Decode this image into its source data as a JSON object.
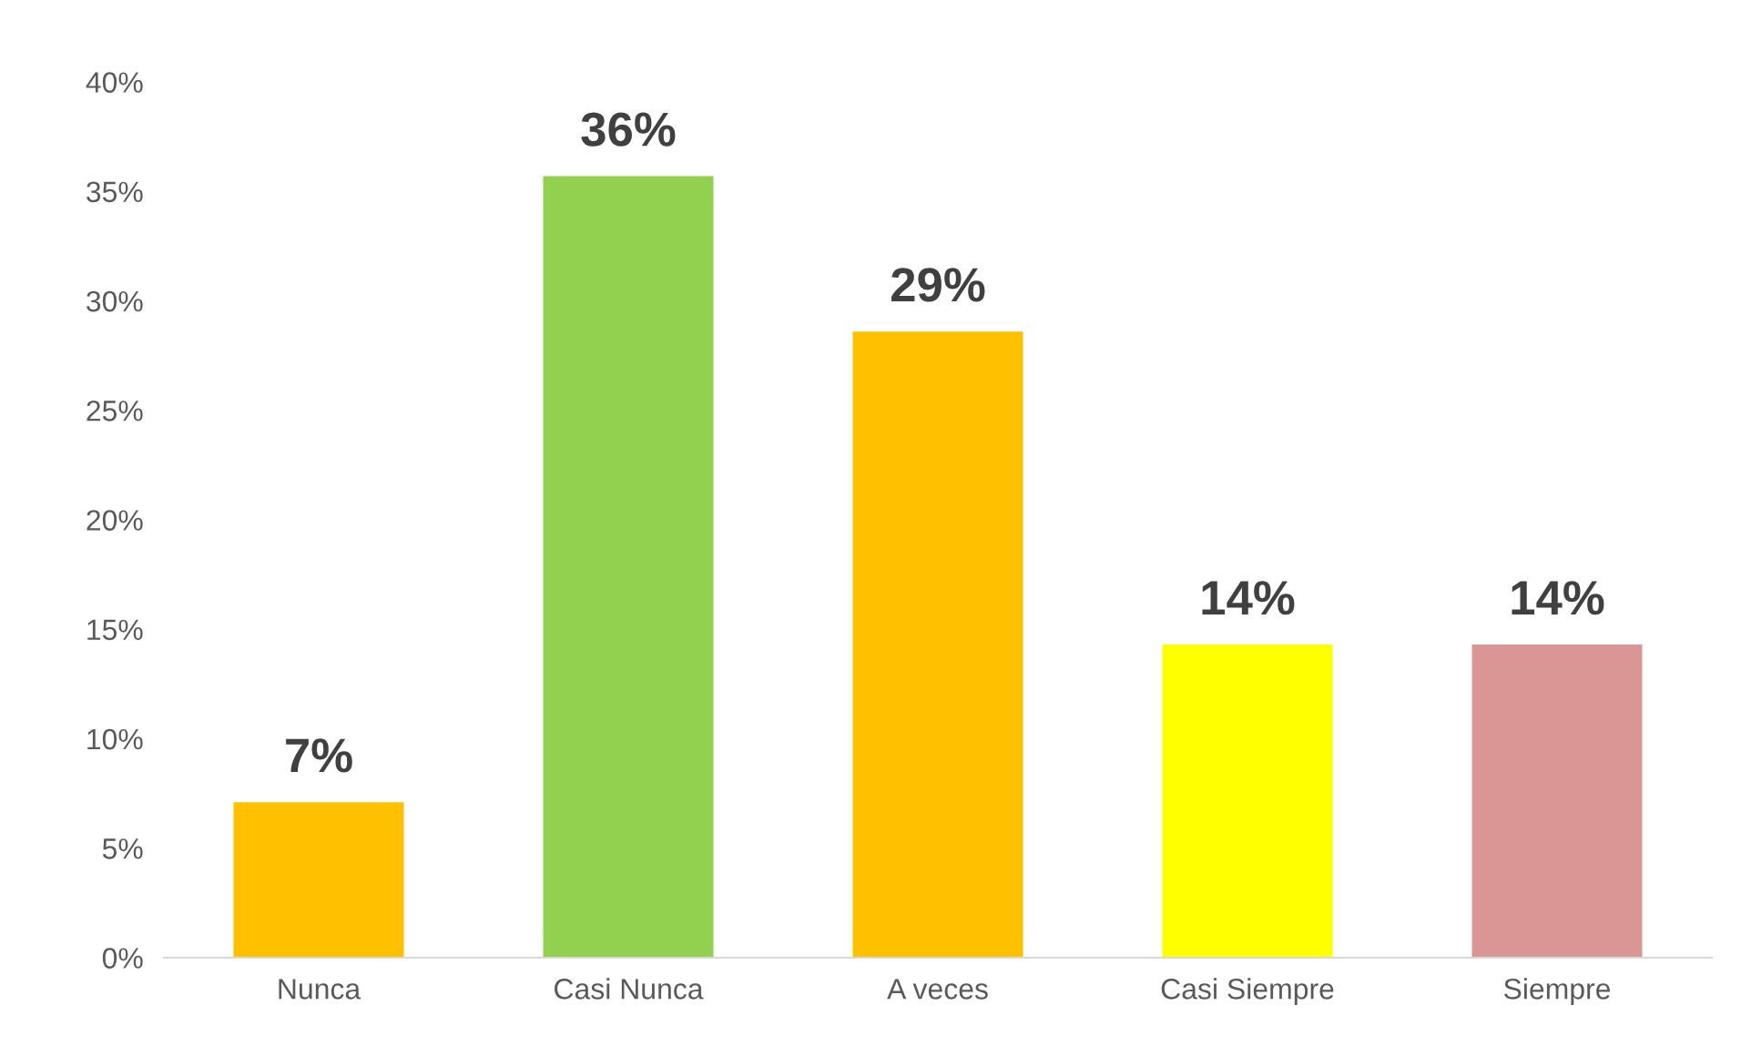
{
  "chart_data": {
    "type": "bar",
    "categories": [
      "Nunca",
      "Casi Nunca",
      "A veces",
      "Casi Siempre",
      "Siempre"
    ],
    "values": [
      7.1,
      35.7,
      28.6,
      14.3,
      14.3
    ],
    "colors": [
      "#ffc000",
      "#92d050",
      "#ffc000",
      "#ffff00",
      "#d99694"
    ],
    "value_labels": [
      "7%",
      "36%",
      "29%",
      "14%",
      "14%"
    ],
    "ylim": [
      0,
      40
    ],
    "yticks": [
      {
        "value": 0,
        "label": "0%"
      },
      {
        "value": 5,
        "label": "5%"
      },
      {
        "value": 10,
        "label": "10%"
      },
      {
        "value": 15,
        "label": "15%"
      },
      {
        "value": 20,
        "label": "20%"
      },
      {
        "value": 25,
        "label": "25%"
      },
      {
        "value": 30,
        "label": "30%"
      },
      {
        "value": 35,
        "label": "35%"
      },
      {
        "value": 40,
        "label": "40%"
      }
    ],
    "grid": false,
    "legend": false
  }
}
